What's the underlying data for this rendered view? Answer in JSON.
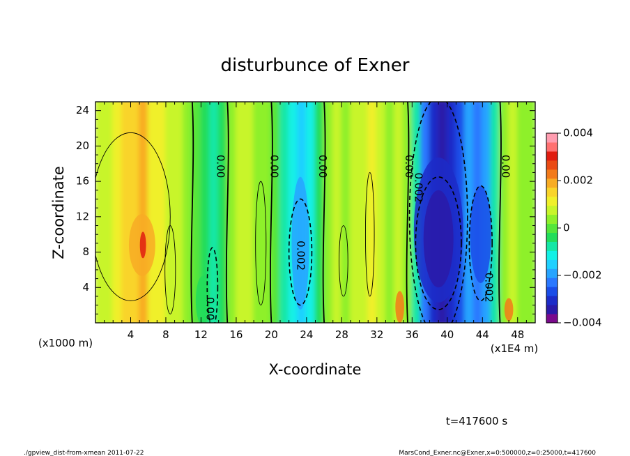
{
  "chart_data": {
    "type": "heatmap",
    "title": "disturbunce of Exner",
    "xlabel": "X-coordinate",
    "ylabel": "Z-coordinate",
    "x_unit_label": "(x1E4 m)",
    "y_unit_label": "(x1000 m)",
    "xlim": [
      0,
      50
    ],
    "ylim": [
      0,
      25
    ],
    "x_ticks": [
      4,
      8,
      12,
      16,
      20,
      24,
      28,
      32,
      36,
      40,
      44,
      48
    ],
    "y_ticks": [
      4,
      8,
      12,
      16,
      20,
      24
    ],
    "colorbar": {
      "min": -0.004,
      "max": 0.004,
      "tick_values": [
        0.004,
        0.002,
        0,
        -0.002,
        -0.004
      ],
      "tick_labels": [
        "0.004",
        "0.002",
        "0",
        "−0.002",
        "−0.004"
      ],
      "colors": [
        "#7a0a8c",
        "#2a1aa8",
        "#1c2cc8",
        "#1a4de8",
        "#2a78ff",
        "#27a4ff",
        "#1fd0ff",
        "#12f0e6",
        "#14e7a6",
        "#22dd5a",
        "#54e63a",
        "#8ef02a",
        "#c8f52a",
        "#f0f02a",
        "#f9d42a",
        "#f8ac24",
        "#f27a1a",
        "#ea4a14",
        "#e01c10",
        "#ff7070",
        "#ff9db0"
      ]
    },
    "columns": [
      {
        "x": 0,
        "value": 0.0006
      },
      {
        "x": 1,
        "value": 0.0008
      },
      {
        "x": 2,
        "value": 0.001
      },
      {
        "x": 3,
        "value": 0.0014
      },
      {
        "x": 4,
        "value": 0.0016
      },
      {
        "x": 5,
        "value": 0.0018
      },
      {
        "x": 6,
        "value": 0.0012
      },
      {
        "x": 7,
        "value": 0.001
      },
      {
        "x": 8,
        "value": 0.0008
      },
      {
        "x": 9,
        "value": 0.0006
      },
      {
        "x": 10,
        "value": 0.0003
      },
      {
        "x": 11,
        "value": 0.0
      },
      {
        "x": 12,
        "value": -0.0002
      },
      {
        "x": 13,
        "value": -0.0006
      },
      {
        "x": 14,
        "value": -0.0002
      },
      {
        "x": 15,
        "value": 0.0002
      },
      {
        "x": 16,
        "value": 0.0006
      },
      {
        "x": 17,
        "value": 0.0008
      },
      {
        "x": 18,
        "value": 0.0005
      },
      {
        "x": 19,
        "value": 0.0002
      },
      {
        "x": 20,
        "value": 0.0
      },
      {
        "x": 21,
        "value": -0.0008
      },
      {
        "x": 22,
        "value": -0.0012
      },
      {
        "x": 23,
        "value": -0.0016
      },
      {
        "x": 24,
        "value": -0.001
      },
      {
        "x": 25,
        "value": -0.0004
      },
      {
        "x": 26,
        "value": 0.0002
      },
      {
        "x": 27,
        "value": 0.0006
      },
      {
        "x": 28,
        "value": 0.0002
      },
      {
        "x": 29,
        "value": 0.0006
      },
      {
        "x": 30,
        "value": 0.0008
      },
      {
        "x": 31,
        "value": 0.001
      },
      {
        "x": 32,
        "value": 0.0006
      },
      {
        "x": 33,
        "value": 0.0003
      },
      {
        "x": 34,
        "value": 0.0008
      },
      {
        "x": 35,
        "value": 0.0002
      },
      {
        "x": 36,
        "value": -0.0008
      },
      {
        "x": 37,
        "value": -0.0024
      },
      {
        "x": 38,
        "value": -0.0032
      },
      {
        "x": 39,
        "value": -0.0036
      },
      {
        "x": 40,
        "value": -0.0032
      },
      {
        "x": 41,
        "value": -0.0026
      },
      {
        "x": 42,
        "value": -0.002
      },
      {
        "x": 43,
        "value": -0.0024
      },
      {
        "x": 44,
        "value": -0.002
      },
      {
        "x": 45,
        "value": -0.0006
      },
      {
        "x": 46,
        "value": 0.0002
      },
      {
        "x": 47,
        "value": 0.0006
      },
      {
        "x": 48,
        "value": 0.0004
      },
      {
        "x": 49,
        "value": 0.0002
      }
    ],
    "contour_labels": [
      {
        "x": 13.0,
        "z": 1.6,
        "text": "0.00"
      },
      {
        "x": 14.2,
        "z": 17.7,
        "text": "0.00"
      },
      {
        "x": 20.3,
        "z": 17.7,
        "text": "0.00"
      },
      {
        "x": 25.8,
        "z": 17.7,
        "text": "0.00"
      },
      {
        "x": 23.3,
        "z": 7.6,
        "text": "0.002"
      },
      {
        "x": 35.6,
        "z": 17.7,
        "text": "0.00"
      },
      {
        "x": 36.7,
        "z": 15.3,
        "text": "0.002"
      },
      {
        "x": 44.7,
        "z": 4.0,
        "text": "0.002"
      },
      {
        "x": 46.6,
        "z": 17.7,
        "text": "0.00"
      }
    ],
    "time_label": "t=417600 s",
    "footer_left": "./gpview_dist-from-xmean  2011-07-22",
    "footer_right": "MarsCond_Exner.nc@Exner,x=0:500000,z=0:25000,t=417600"
  }
}
